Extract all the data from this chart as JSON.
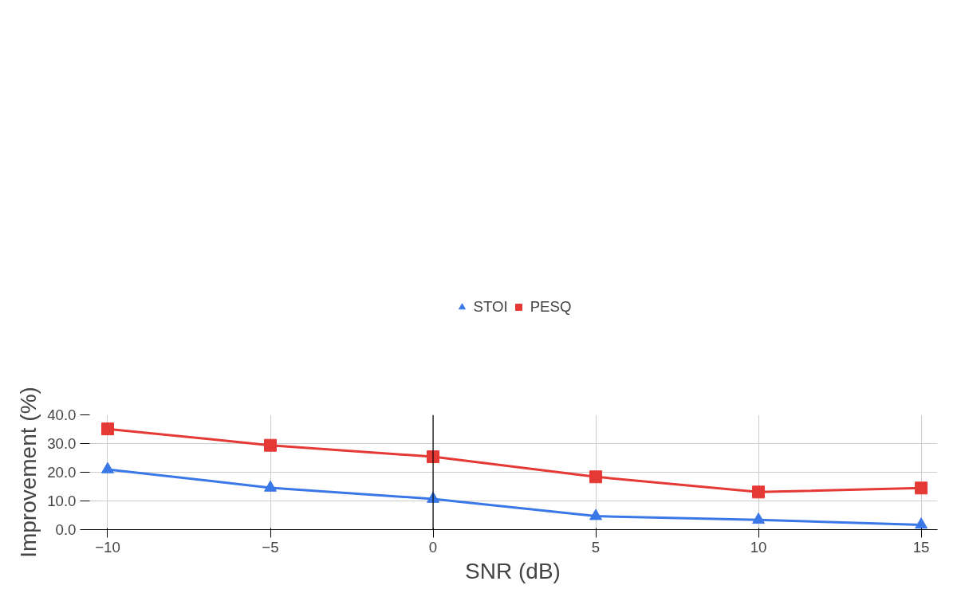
{
  "chart_data": {
    "type": "line",
    "xlabel": "SNR (dB)",
    "ylabel": "Improvement (%)",
    "x": [
      -10,
      -5,
      0,
      5,
      10,
      15
    ],
    "series": [
      {
        "name": "STOI",
        "color": "#3b78e7",
        "marker": "triangle",
        "values": [
          21.0,
          14.6,
          10.7,
          4.7,
          3.4,
          1.7
        ]
      },
      {
        "name": "PESQ",
        "color": "#e53935",
        "marker": "square",
        "values": [
          35.1,
          29.4,
          25.4,
          18.4,
          13.1,
          14.5
        ]
      }
    ],
    "xlim": [
      -10.6,
      15.5
    ],
    "ylim": [
      0,
      40
    ],
    "xticks": [
      -10,
      -5,
      0,
      5,
      10,
      15
    ],
    "yticks": [
      {
        "value": 0,
        "label": "0.0"
      },
      {
        "value": 10,
        "label": "10.0"
      },
      {
        "value": 20,
        "label": "20.0"
      },
      {
        "value": 30,
        "label": "30.0"
      },
      {
        "value": 40,
        "label": "40.0"
      }
    ],
    "ref_lines": [
      {
        "axis": "x",
        "value": 0,
        "color": "#000000"
      }
    ],
    "grid": true,
    "legend": "top",
    "line_style": "solid"
  }
}
